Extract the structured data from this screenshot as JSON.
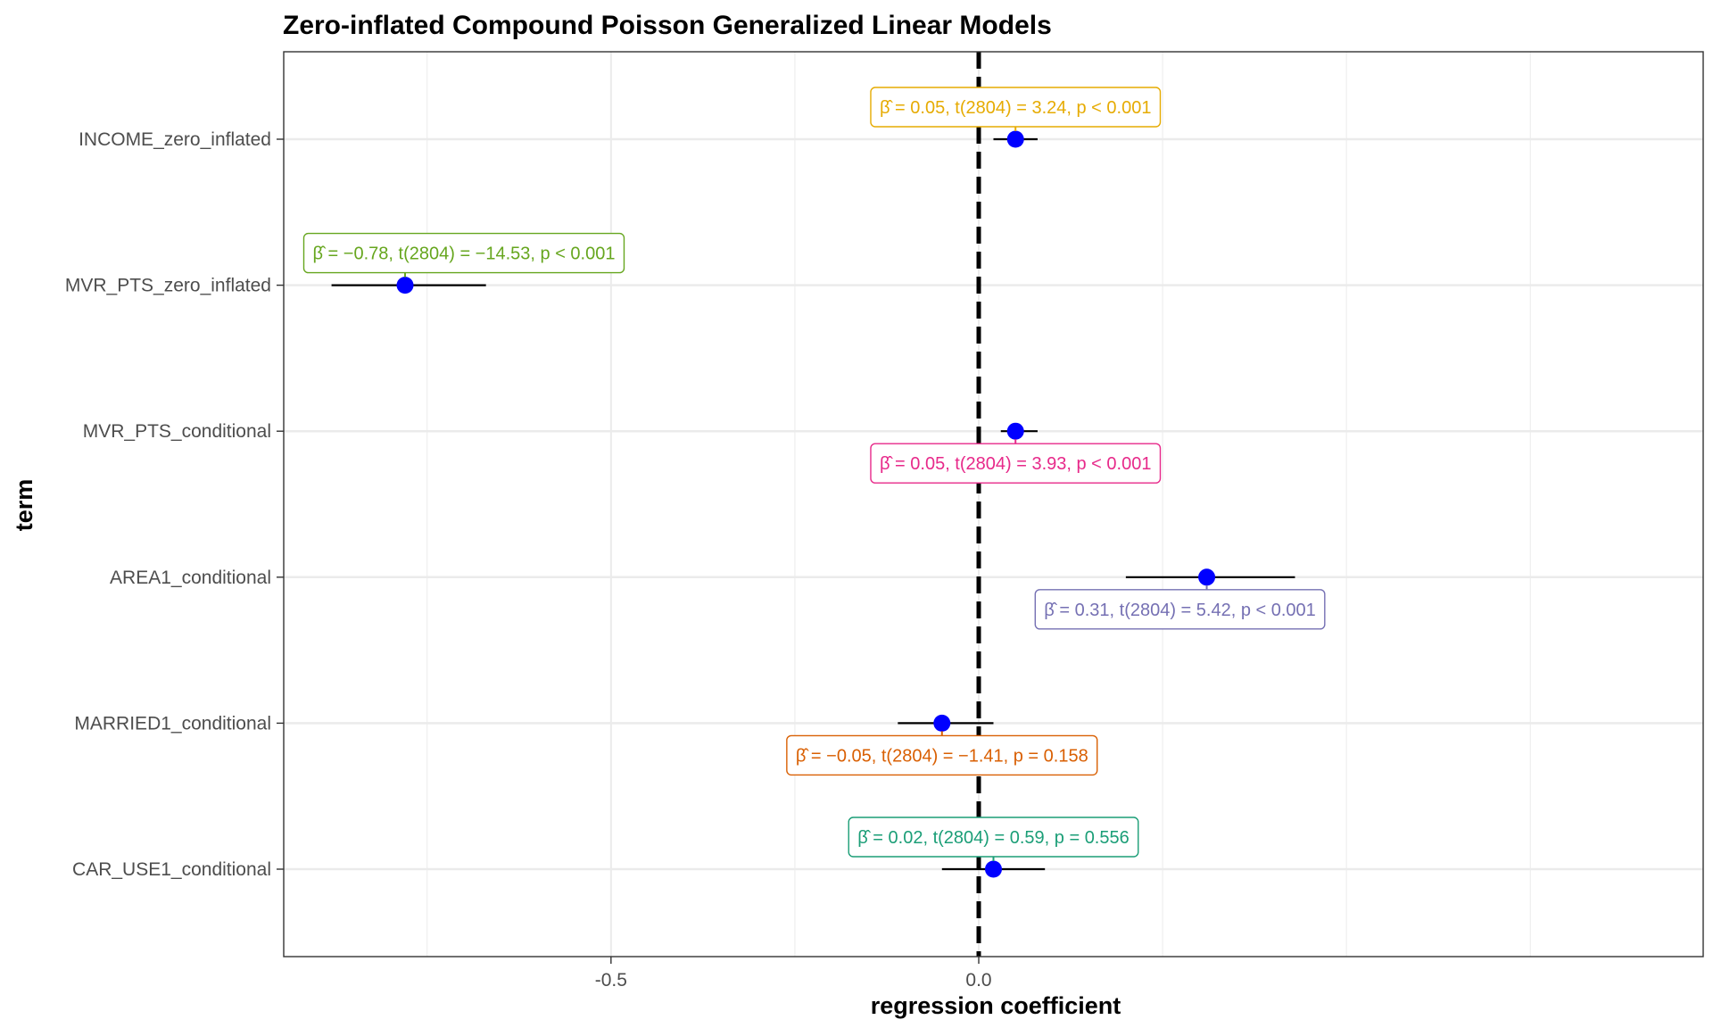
{
  "chart_data": {
    "type": "scatter",
    "title": "Zero-inflated Compound Poisson Generalized Linear Models",
    "xlabel": "regression coefficient",
    "ylabel": "term",
    "xlim": [
      -0.945,
      0.985
    ],
    "x_ticks": [
      -0.5,
      0.0
    ],
    "x_tick_labels": [
      "-0.5",
      "0.0"
    ],
    "grid": true,
    "reference_line": 0,
    "terms": [
      {
        "term": "INCOME_zero_inflated",
        "estimate": 0.05,
        "ci_low": 0.02,
        "ci_high": 0.08,
        "annotation": "β̂ = 0.05, t(2804) = 3.24, p < 0.001",
        "color": "#E6AB02"
      },
      {
        "term": "MVR_PTS_zero_inflated",
        "estimate": -0.78,
        "ci_low": -0.88,
        "ci_high": -0.67,
        "annotation": "β̂ = −0.78, t(2804) = −14.53, p < 0.001",
        "color": "#66A61E"
      },
      {
        "term": "MVR_PTS_conditional",
        "estimate": 0.05,
        "ci_low": 0.03,
        "ci_high": 0.08,
        "annotation": "β̂ = 0.05, t(2804) = 3.93, p < 0.001",
        "color": "#E7298A"
      },
      {
        "term": "AREA1_conditional",
        "estimate": 0.31,
        "ci_low": 0.2,
        "ci_high": 0.43,
        "annotation": "β̂ = 0.31, t(2804) = 5.42, p < 0.001",
        "color": "#7570B3"
      },
      {
        "term": "MARRIED1_conditional",
        "estimate": -0.05,
        "ci_low": -0.11,
        "ci_high": 0.02,
        "annotation": "β̂ = −0.05, t(2804) = −1.41, p = 0.158",
        "color": "#D95F02"
      },
      {
        "term": "CAR_USE1_conditional",
        "estimate": 0.02,
        "ci_low": -0.05,
        "ci_high": 0.09,
        "annotation": "β̂ = 0.02, t(2804) = 0.59, p = 0.556",
        "color": "#1B9E77"
      }
    ]
  }
}
